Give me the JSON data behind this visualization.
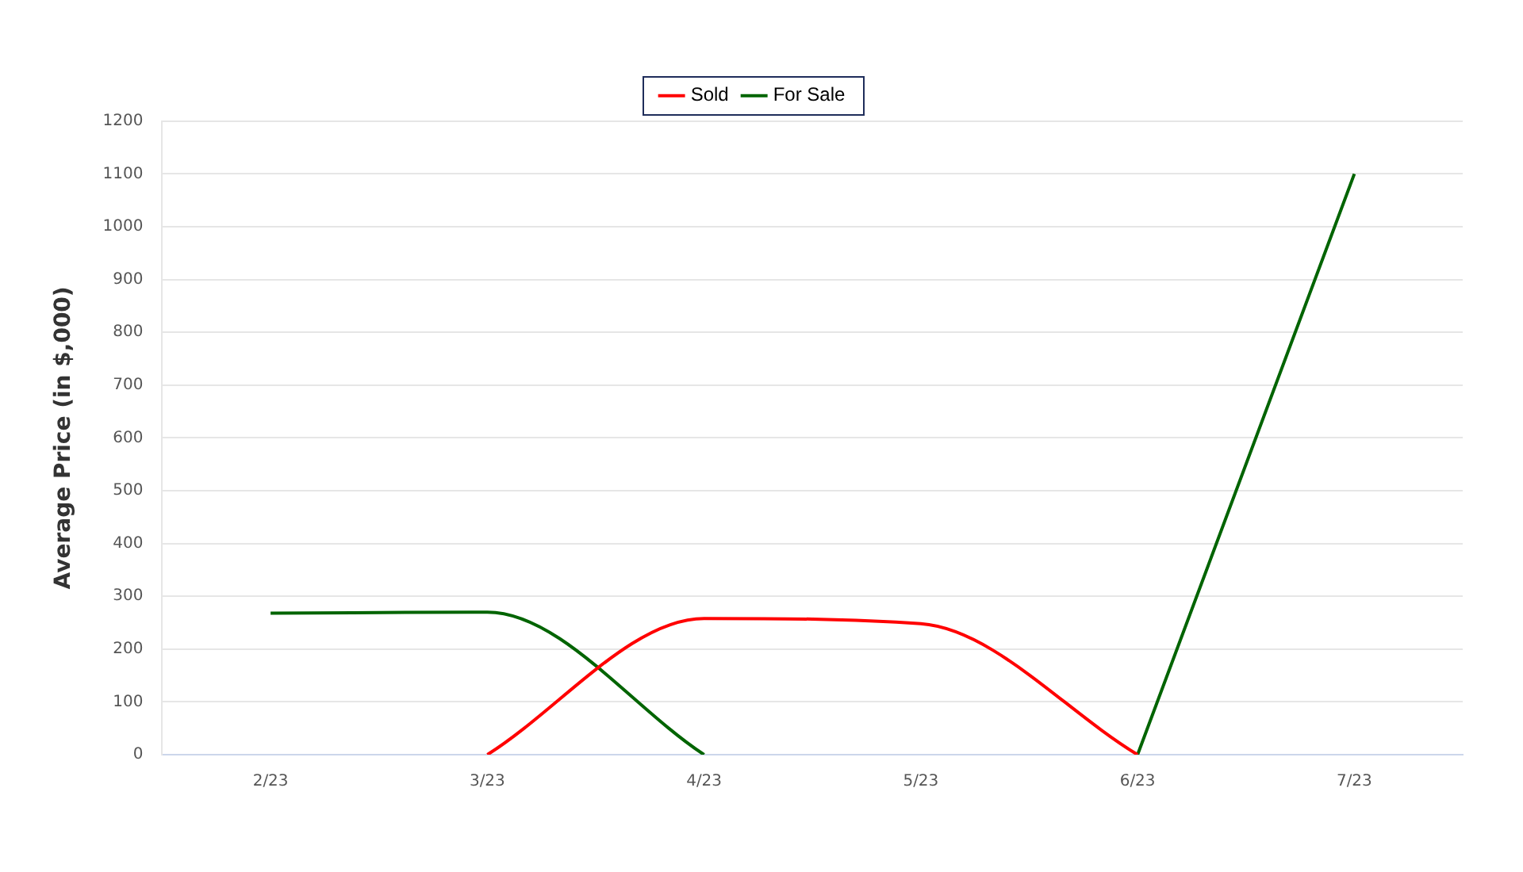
{
  "chart_data": {
    "type": "line",
    "ylabel": "Average Price (in $,000)",
    "categories": [
      "2/23",
      "3/23",
      "4/23",
      "5/23",
      "6/23",
      "7/23"
    ],
    "series": [
      {
        "name": "Sold",
        "color": "#ff0000",
        "values": [
          null,
          0,
          258,
          248,
          0,
          null
        ]
      },
      {
        "name": "For Sale",
        "color": "#006400",
        "values": [
          268,
          270,
          0,
          null,
          0,
          1100
        ]
      }
    ],
    "ylim": [
      0,
      1200
    ],
    "yticks": [
      0,
      100,
      200,
      300,
      400,
      500,
      600,
      700,
      800,
      900,
      1000,
      1100,
      1200
    ],
    "grid": "y",
    "legend": "top",
    "marker": "none",
    "line_style": "solid"
  }
}
